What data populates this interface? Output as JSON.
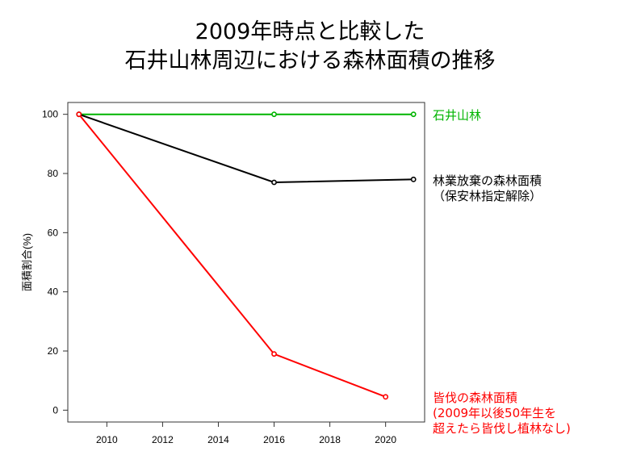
{
  "title_lines": [
    "2009年時点と比較した",
    "石井山林周辺における森林面積の推移"
  ],
  "colors": {
    "green": "#00b400",
    "black": "#000000",
    "red": "#ff0000"
  },
  "legend": {
    "green": [
      "石井山林"
    ],
    "black": [
      "林業放棄の森林面積",
      "（保安林指定解除）"
    ],
    "red": [
      "皆伐の森林面積",
      "(2009年以後50年生を",
      "超えたら皆伐し植林なし)"
    ]
  },
  "chart_data": {
    "type": "line",
    "title": "",
    "xlabel": "",
    "ylabel": "面積割合(%)",
    "xlim": [
      2008.6,
      2021.4
    ],
    "ylim": [
      -4,
      104
    ],
    "x_ticks": [
      2010,
      2012,
      2014,
      2016,
      2018,
      2020
    ],
    "y_ticks": [
      0,
      20,
      40,
      60,
      80,
      100
    ],
    "grid": false,
    "series": [
      {
        "color": "#00b400",
        "points": [
          [
            2009,
            100
          ],
          [
            2016,
            100
          ],
          [
            2021,
            100
          ]
        ]
      },
      {
        "color": "#000000",
        "points": [
          [
            2009,
            100
          ],
          [
            2016,
            77
          ],
          [
            2021,
            78
          ]
        ]
      },
      {
        "color": "#ff0000",
        "points": [
          [
            2009,
            100
          ],
          [
            2016,
            19
          ],
          [
            2020,
            4.5
          ]
        ]
      }
    ]
  }
}
